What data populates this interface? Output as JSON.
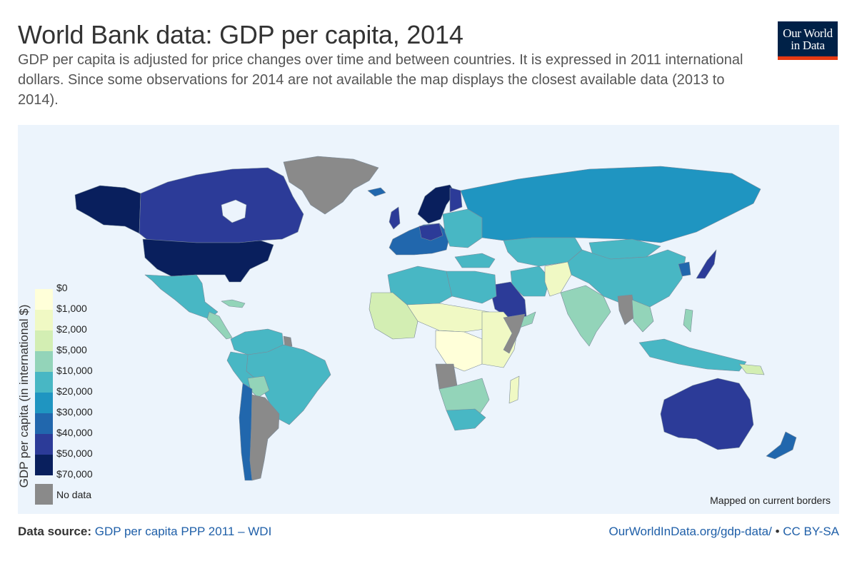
{
  "header": {
    "title": "World Bank data: GDP per capita, 2014",
    "subtitle": "GDP per capita is adjusted for price changes over time and between countries. It is expressed in 2011 international dollars. Since some observations for 2014 are not available the map displays the closest available data (2013 to 2014)."
  },
  "logo": {
    "line1": "Our World",
    "line2": "in Data",
    "bg_color": "#002147",
    "accent_color": "#e63912"
  },
  "legend": {
    "axis_title": "GDP per capita (in international $)",
    "bins": [
      {
        "label": "$0",
        "color": "#ffffd9"
      },
      {
        "label": "$1,000",
        "color": "#f0f9c4"
      },
      {
        "label": "$2,000",
        "color": "#d3eeb3"
      },
      {
        "label": "$5,000",
        "color": "#93d4b9"
      },
      {
        "label": "$10,000",
        "color": "#48b7c4"
      },
      {
        "label": "$20,000",
        "color": "#1f95c1"
      },
      {
        "label": "$30,000",
        "color": "#2167ad"
      },
      {
        "label": "$40,000",
        "color": "#2c3b98"
      },
      {
        "label": "$50,000",
        "color": "#091f5d"
      },
      {
        "label": "$70,000",
        "color": "#091f5d"
      }
    ],
    "no_data": {
      "label": "No data",
      "color": "#8a8a8a"
    }
  },
  "map": {
    "note": "Mapped on current borders",
    "ocean_color": "#ecf4fc"
  },
  "footer": {
    "source_label": "Data source:",
    "source_link": "GDP per capita PPP 2011 – WDI",
    "site_link": "OurWorldInData.org/gdp-data/",
    "separator": " • ",
    "license_link": "CC BY-SA"
  }
}
